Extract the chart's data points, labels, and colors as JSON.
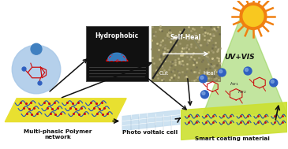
{
  "bg_color": "#ffffff",
  "labels": {
    "multi_phasic": "Multi-phasic Polymer\nnetwork",
    "photo_voltaic": "Photo voltaic cell",
    "smart_coating": "Smart coating material",
    "hydrophobic": "Hydrophobic",
    "self_heal": "Self-Heal",
    "cut": "Cut",
    "heal": "Heal",
    "uv_vis": "UV+VIS"
  },
  "colors": {
    "yellow_panel": "#e8e030",
    "yellow_panel2": "#cce030",
    "blue_circle": "#a8c8e8",
    "sun_orange": "#f08010",
    "sun_yellow": "#f8c820",
    "arrow_color": "#101010",
    "text_color": "#101010",
    "hydro_box_bg": "#0a0a0a",
    "selfheal_box_bg": "#8a8455",
    "pv_cell_light": "#c8dff0",
    "pv_cell_dark": "#7090b0",
    "green_tri": "#90d050"
  },
  "figsize": [
    3.65,
    1.89
  ],
  "dpi": 100
}
